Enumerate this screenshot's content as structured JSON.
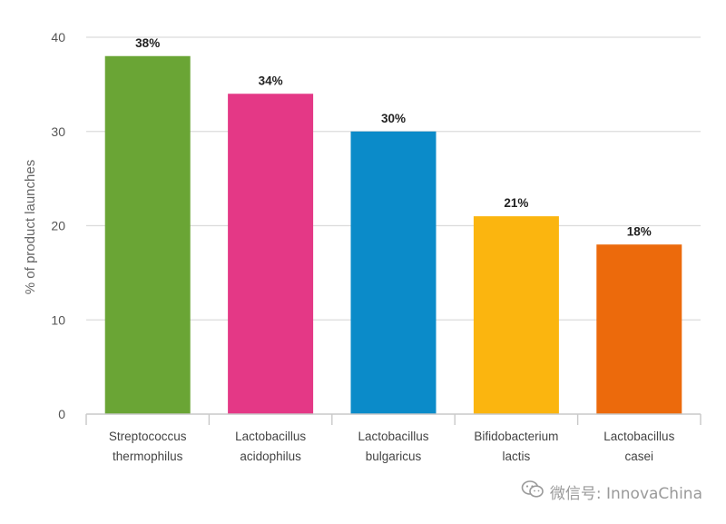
{
  "chart_data": {
    "type": "bar",
    "title": "",
    "xlabel": "",
    "ylabel": "% of product launches",
    "ylim": [
      0,
      40
    ],
    "yticks": [
      0,
      10,
      20,
      30,
      40
    ],
    "grid": true,
    "categories": [
      [
        "Streptococcus",
        "thermophilus"
      ],
      [
        "Lactobacillus",
        "acidophilus"
      ],
      [
        "Lactobacillus",
        "bulgaricus"
      ],
      [
        "Bifidobacterium",
        "lactis"
      ],
      [
        "Lactobacillus",
        "casei"
      ]
    ],
    "values": [
      38,
      34,
      30,
      21,
      18
    ],
    "data_labels": [
      "38%",
      "34%",
      "30%",
      "21%",
      "18%"
    ],
    "colors": [
      "#6aa535",
      "#e43886",
      "#0b8bc9",
      "#fbb50f",
      "#ec6a0c"
    ]
  },
  "watermark": {
    "icon": "wechat-icon",
    "text": "微信号: InnovaChina"
  }
}
